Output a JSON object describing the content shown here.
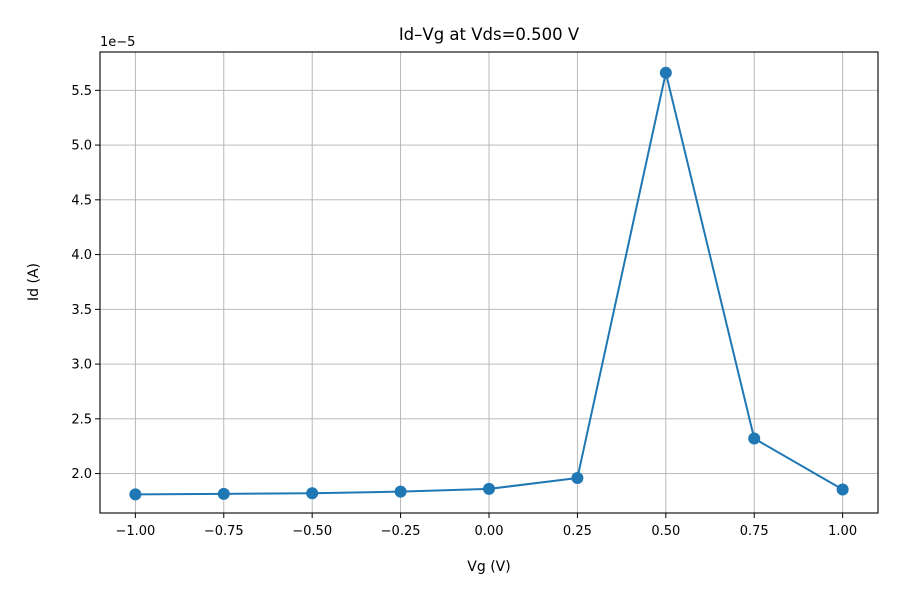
{
  "chart_data": {
    "type": "line",
    "title": "Id–Vg at Vds=0.500 V",
    "xlabel": "Vg (V)",
    "ylabel": "Id (A)",
    "y_offset_label": "1e−5",
    "xlim": [
      -1.1,
      1.1
    ],
    "ylim": [
      1.64e-05,
      5.85e-05
    ],
    "x_ticks": [
      -1.0,
      -0.75,
      -0.5,
      -0.25,
      0.0,
      0.25,
      0.5,
      0.75,
      1.0
    ],
    "x_tick_labels": [
      "−1.00",
      "−0.75",
      "−0.50",
      "−0.25",
      "0.00",
      "0.25",
      "0.50",
      "0.75",
      "1.00"
    ],
    "y_ticks": [
      2e-05,
      2.5e-05,
      3e-05,
      3.5e-05,
      4e-05,
      4.5e-05,
      5e-05,
      5.5e-05
    ],
    "y_tick_labels": [
      "2.0",
      "2.5",
      "3.0",
      "3.5",
      "4.0",
      "4.5",
      "5.0",
      "5.5"
    ],
    "grid": true,
    "series": [
      {
        "color": "#1f77b4",
        "x": [
          -1.0,
          -0.75,
          -0.5,
          -0.25,
          0.0,
          0.25,
          0.5,
          0.75,
          1.0
        ],
        "y": [
          1.81e-05,
          1.815e-05,
          1.82e-05,
          1.835e-05,
          1.86e-05,
          1.96e-05,
          5.66e-05,
          2.32e-05,
          1.855e-05
        ]
      }
    ]
  }
}
